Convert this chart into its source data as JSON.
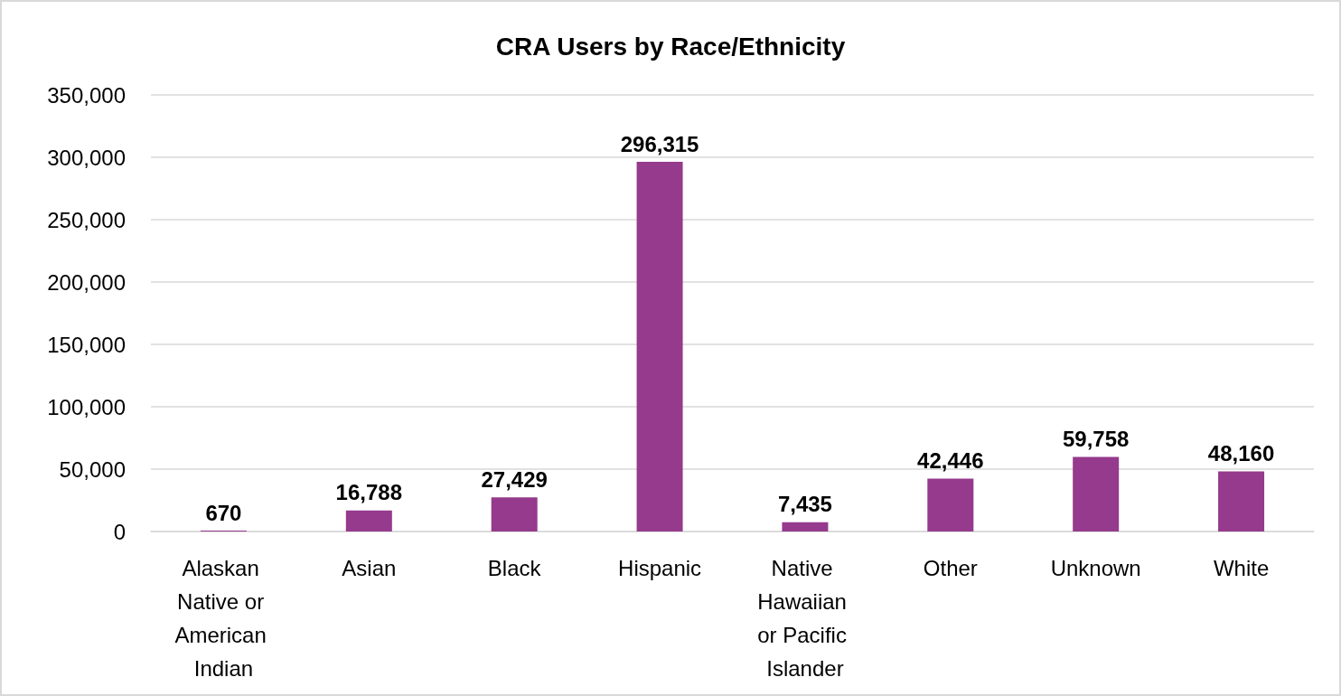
{
  "chart_data": {
    "type": "bar",
    "title": "CRA Users by Race/Ethnicity",
    "categories": [
      "Alaskan Native or American Indian",
      "Asian",
      "Black",
      "Hispanic",
      "Native Hawaiian or Pacific Islander",
      "Other",
      "Unknown",
      "White"
    ],
    "values": [
      670,
      16788,
      27429,
      296315,
      7435,
      42446,
      59758,
      48160
    ],
    "value_labels": [
      "670",
      "16,788",
      "27,429",
      "296,315",
      "7,435",
      "42,446",
      "59,758",
      "48,160"
    ],
    "color": "#953a8c",
    "ylim": [
      0,
      350000
    ],
    "yticks": [
      0,
      {
        "value": 50000,
        "label": "50,000"
      },
      {
        "value": 100000,
        "label": "100,000"
      },
      {
        "value": 150000,
        "label": "150,000"
      },
      {
        "value": 200000,
        "label": "200,000"
      },
      {
        "value": 250000,
        "label": "250,000"
      },
      {
        "value": 300000,
        "label": "300,000"
      },
      {
        "value": 350000,
        "label": "350,000"
      }
    ],
    "grid": "y"
  }
}
